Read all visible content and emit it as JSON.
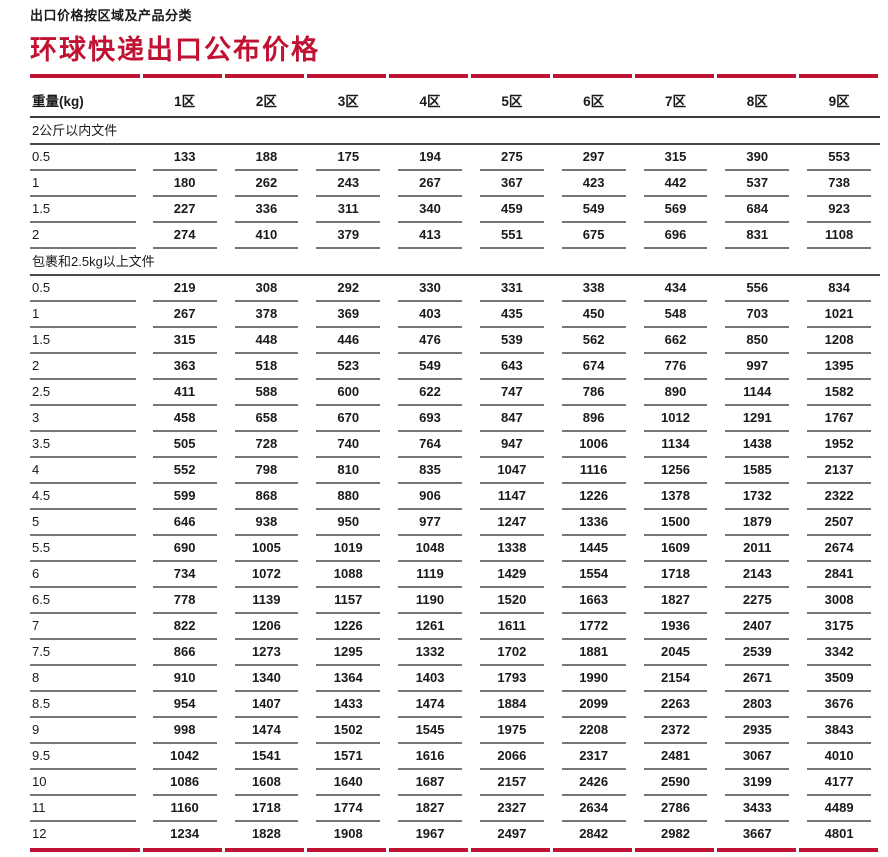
{
  "page": {
    "eyebrow": "出口价格按区域及产品分类",
    "title": "环球快递出口公布价格"
  },
  "colors": {
    "accent_red": "#C01334",
    "row_line_gray": "#757575",
    "header_line": "#3a3a3a"
  },
  "table": {
    "weight_header": "重量(kg)",
    "zone_headers": [
      "1区",
      "2区",
      "3区",
      "4区",
      "5区",
      "6区",
      "7区",
      "8区",
      "9区"
    ],
    "sections": [
      {
        "label": "2公斤以内文件",
        "rows": [
          {
            "weight": "0.5",
            "prices": [
              133,
              188,
              175,
              194,
              275,
              297,
              315,
              390,
              553
            ]
          },
          {
            "weight": "1",
            "prices": [
              180,
              262,
              243,
              267,
              367,
              423,
              442,
              537,
              738
            ]
          },
          {
            "weight": "1.5",
            "prices": [
              227,
              336,
              311,
              340,
              459,
              549,
              569,
              684,
              923
            ]
          },
          {
            "weight": "2",
            "prices": [
              274,
              410,
              379,
              413,
              551,
              675,
              696,
              831,
              1108
            ]
          }
        ]
      },
      {
        "label": "包裹和2.5kg以上文件",
        "rows": [
          {
            "weight": "0.5",
            "prices": [
              219,
              308,
              292,
              330,
              331,
              338,
              434,
              556,
              834
            ]
          },
          {
            "weight": "1",
            "prices": [
              267,
              378,
              369,
              403,
              435,
              450,
              548,
              703,
              1021
            ]
          },
          {
            "weight": "1.5",
            "prices": [
              315,
              448,
              446,
              476,
              539,
              562,
              662,
              850,
              1208
            ]
          },
          {
            "weight": "2",
            "prices": [
              363,
              518,
              523,
              549,
              643,
              674,
              776,
              997,
              1395
            ]
          },
          {
            "weight": "2.5",
            "prices": [
              411,
              588,
              600,
              622,
              747,
              786,
              890,
              1144,
              1582
            ]
          },
          {
            "weight": "3",
            "prices": [
              458,
              658,
              670,
              693,
              847,
              896,
              1012,
              1291,
              1767
            ]
          },
          {
            "weight": "3.5",
            "prices": [
              505,
              728,
              740,
              764,
              947,
              1006,
              1134,
              1438,
              1952
            ]
          },
          {
            "weight": "4",
            "prices": [
              552,
              798,
              810,
              835,
              1047,
              1116,
              1256,
              1585,
              2137
            ]
          },
          {
            "weight": "4.5",
            "prices": [
              599,
              868,
              880,
              906,
              1147,
              1226,
              1378,
              1732,
              2322
            ]
          },
          {
            "weight": "5",
            "prices": [
              646,
              938,
              950,
              977,
              1247,
              1336,
              1500,
              1879,
              2507
            ]
          },
          {
            "weight": "5.5",
            "prices": [
              690,
              1005,
              1019,
              1048,
              1338,
              1445,
              1609,
              2011,
              2674
            ]
          },
          {
            "weight": "6",
            "prices": [
              734,
              1072,
              1088,
              1119,
              1429,
              1554,
              1718,
              2143,
              2841
            ]
          },
          {
            "weight": "6.5",
            "prices": [
              778,
              1139,
              1157,
              1190,
              1520,
              1663,
              1827,
              2275,
              3008
            ]
          },
          {
            "weight": "7",
            "prices": [
              822,
              1206,
              1226,
              1261,
              1611,
              1772,
              1936,
              2407,
              3175
            ]
          },
          {
            "weight": "7.5",
            "prices": [
              866,
              1273,
              1295,
              1332,
              1702,
              1881,
              2045,
              2539,
              3342
            ]
          },
          {
            "weight": "8",
            "prices": [
              910,
              1340,
              1364,
              1403,
              1793,
              1990,
              2154,
              2671,
              3509
            ]
          },
          {
            "weight": "8.5",
            "prices": [
              954,
              1407,
              1433,
              1474,
              1884,
              2099,
              2263,
              2803,
              3676
            ]
          },
          {
            "weight": "9",
            "prices": [
              998,
              1474,
              1502,
              1545,
              1975,
              2208,
              2372,
              2935,
              3843
            ]
          },
          {
            "weight": "9.5",
            "prices": [
              1042,
              1541,
              1571,
              1616,
              2066,
              2317,
              2481,
              3067,
              4010
            ]
          },
          {
            "weight": "10",
            "prices": [
              1086,
              1608,
              1640,
              1687,
              2157,
              2426,
              2590,
              3199,
              4177
            ]
          },
          {
            "weight": "11",
            "prices": [
              1160,
              1718,
              1774,
              1827,
              2327,
              2634,
              2786,
              3433,
              4489
            ]
          },
          {
            "weight": "12",
            "prices": [
              1234,
              1828,
              1908,
              1967,
              2497,
              2842,
              2982,
              3667,
              4801
            ]
          }
        ]
      }
    ]
  }
}
